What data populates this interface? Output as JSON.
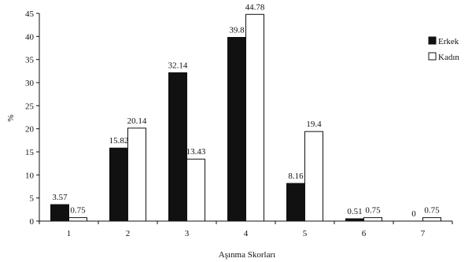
{
  "chart_data": {
    "type": "bar",
    "title": "",
    "xlabel": "Aşınma Skorları",
    "ylabel": "%",
    "ylim": [
      0,
      45
    ],
    "yticks": [
      0,
      5,
      10,
      15,
      20,
      25,
      30,
      35,
      40,
      45
    ],
    "categories": [
      "1",
      "2",
      "3",
      "4",
      "5",
      "6",
      "7"
    ],
    "legend_position": "top-right",
    "grid": false,
    "series": [
      {
        "name": "Erkek",
        "color": "#111111",
        "values": [
          3.57,
          15.82,
          32.14,
          39.8,
          8.16,
          0.51,
          0
        ],
        "labels": [
          "3.57",
          "15.82",
          "32.14",
          "39.8",
          "8.16",
          "0.51",
          "0"
        ]
      },
      {
        "name": "Kadın",
        "color": "#ffffff",
        "values": [
          0.75,
          20.14,
          13.43,
          44.78,
          19.4,
          0.75,
          0.75
        ],
        "labels": [
          "0.75",
          "20.14",
          "13.43",
          "44.78",
          "19.4",
          "0.75",
          "0.75"
        ]
      }
    ]
  }
}
